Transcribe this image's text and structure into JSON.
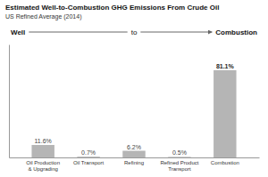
{
  "chart_data": {
    "type": "bar",
    "title": "Estimated Well-to-Combustion GHG Emissions From Crude Oil",
    "subtitle": "US Refined Average (2014)",
    "annotations": [
      "Well",
      "to",
      "Combustion"
    ],
    "categories": [
      "Oil Production\n& Upgrading",
      "Oil Transport",
      "Refining",
      "Refined Product\nTransport",
      "Combustion"
    ],
    "values": [
      11.6,
      0.7,
      6.2,
      0.5,
      81.1
    ],
    "value_labels": [
      "11.6%",
      "0.7%",
      "6.2%",
      "0.5%",
      "81.1%"
    ],
    "color": "#b5b5b5",
    "ylim": [
      0,
      105
    ],
    "data_labels": true,
    "tick_labels": "x"
  }
}
